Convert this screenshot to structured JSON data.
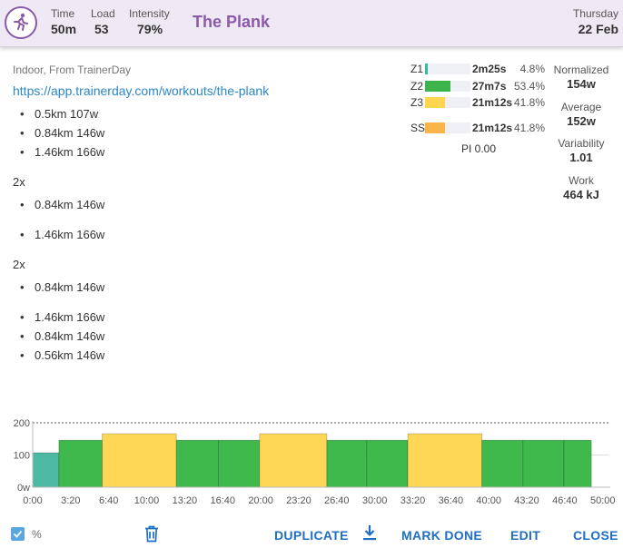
{
  "header": {
    "avatar_icon": "runner-icon",
    "stats": [
      {
        "label": "Time",
        "value": "50m"
      },
      {
        "label": "Load",
        "value": "53"
      },
      {
        "label": "Intensity",
        "value": "79%"
      }
    ],
    "title": "The Plank",
    "day": "Thursday",
    "date": "22 Feb"
  },
  "description": {
    "source": "Indoor, From TrainerDay",
    "link": "https://app.trainerday.com/workouts/the-plank",
    "lines": [
      {
        "type": "bullet",
        "text": "0.5km 107w"
      },
      {
        "type": "bullet",
        "text": "0.84km 146w"
      },
      {
        "type": "bullet",
        "text": "1.46km 166w"
      },
      {
        "type": "text",
        "text": "2x"
      },
      {
        "type": "bullet",
        "text": "0.84km 146w"
      },
      {
        "type": "bullet",
        "text": "1.46km 166w"
      },
      {
        "type": "text",
        "text": "2x"
      },
      {
        "type": "bullet",
        "text": "0.84km 146w"
      },
      {
        "type": "bullet",
        "text": "1.46km 166w"
      },
      {
        "type": "bullet",
        "text": "0.84km 146w"
      },
      {
        "type": "bullet",
        "text": "0.56km 146w"
      }
    ]
  },
  "zones": [
    {
      "name": "Z1",
      "time": "2m25s",
      "percent": "4.8%",
      "fraction": 0.048,
      "color": "#3cb89a"
    },
    {
      "name": "Z2",
      "time": "27m7s",
      "percent": "53.4%",
      "fraction": 0.534,
      "color": "#3cb44b"
    },
    {
      "name": "Z3",
      "time": "21m12s",
      "percent": "41.8%",
      "fraction": 0.418,
      "color": "#fdd54f"
    },
    {
      "name": "SS",
      "time": "21m12s",
      "percent": "41.8%",
      "fraction": 0.418,
      "color": "#f9b54a"
    }
  ],
  "pi": "PI 0.00",
  "metrics": [
    {
      "label": "Normalized",
      "value": "154w"
    },
    {
      "label": "Average",
      "value": "152w"
    },
    {
      "label": "Variability",
      "value": "1.01"
    },
    {
      "label": "Work",
      "value": "464 kJ"
    }
  ],
  "chart_data": {
    "type": "bar",
    "x_unit": "minutes",
    "y_ticks": [
      "0w",
      "100",
      "200"
    ],
    "x_ticks": [
      "0:00",
      "3:20",
      "6:40",
      "10:00",
      "13:20",
      "16:40",
      "20:00",
      "23:20",
      "26:40",
      "30:00",
      "33:20",
      "36:40",
      "40:00",
      "43:20",
      "46:40",
      "50:00"
    ],
    "ylim": [
      0,
      200
    ],
    "xlim": [
      0,
      50.5
    ],
    "reference_line": 200,
    "segments": [
      {
        "start": 0.0,
        "end": 2.3,
        "watts": 107,
        "zone": "Z1"
      },
      {
        "start": 2.3,
        "end": 6.1,
        "watts": 146,
        "zone": "Z2"
      },
      {
        "start": 6.1,
        "end": 12.6,
        "watts": 166,
        "zone": "Z3"
      },
      {
        "start": 12.6,
        "end": 16.3,
        "watts": 146,
        "zone": "Z2"
      },
      {
        "start": 16.3,
        "end": 19.9,
        "watts": 146,
        "zone": "Z2"
      },
      {
        "start": 19.9,
        "end": 25.8,
        "watts": 166,
        "zone": "Z3"
      },
      {
        "start": 25.8,
        "end": 29.3,
        "watts": 146,
        "zone": "Z2"
      },
      {
        "start": 29.3,
        "end": 32.9,
        "watts": 146,
        "zone": "Z2"
      },
      {
        "start": 32.9,
        "end": 39.4,
        "watts": 166,
        "zone": "Z3"
      },
      {
        "start": 39.4,
        "end": 43.0,
        "watts": 146,
        "zone": "Z2"
      },
      {
        "start": 43.0,
        "end": 46.6,
        "watts": 146,
        "zone": "Z2"
      },
      {
        "start": 46.6,
        "end": 49.0,
        "watts": 146,
        "zone": "Z2"
      }
    ],
    "zone_colors": {
      "Z1": "#4cb9a3",
      "Z2": "#3fb94c",
      "Z3": "#fdd755"
    }
  },
  "footer": {
    "percent_label": "%",
    "duplicate": "DUPLICATE",
    "mark_done": "MARK DONE",
    "edit": "EDIT",
    "close": "CLOSE"
  }
}
